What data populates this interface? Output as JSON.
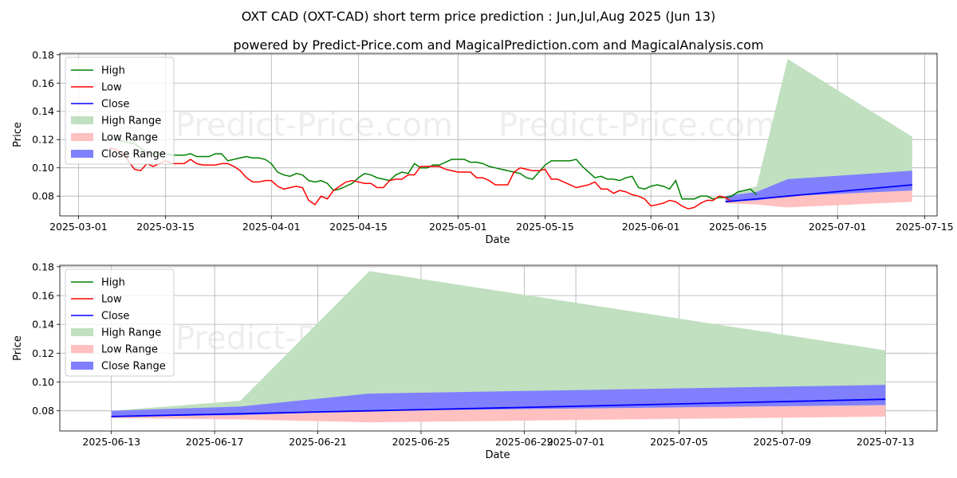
{
  "title": "OXT CAD (OXT-CAD) short term price prediction : Jun,Jul,Aug 2025 (Jun 13)",
  "subtitle": "powered by Predict-Price.com and MagicalPrediction.com and MagicalAnalysis.com",
  "watermark": "Predict-Price.com",
  "colors": {
    "high": "#008000",
    "low": "#ff0000",
    "close": "#0000ff",
    "high_range": "#c0e0c0",
    "low_range": "#ffc0c0",
    "close_range": "#8080ff",
    "grid": "#b0b0b0"
  },
  "chart_data": [
    {
      "type": "line",
      "name": "history-and-forecast",
      "xlabel": "Date",
      "ylabel": "Price",
      "xlim": [
        "2025-02-26",
        "2025-07-17"
      ],
      "ylim": [
        0.066,
        0.181
      ],
      "grid": true,
      "legend_position": "upper-left",
      "legend": [
        "High",
        "Low",
        "Close",
        "High Range",
        "Low Range",
        "Close Range"
      ],
      "xticks": [
        "2025-03-01",
        "2025-03-15",
        "2025-04-01",
        "2025-04-15",
        "2025-05-01",
        "2025-05-15",
        "2025-06-01",
        "2025-06-15",
        "2025-07-01",
        "2025-07-15"
      ],
      "yticks": [
        0.08,
        0.1,
        0.12,
        0.14,
        0.16,
        0.18
      ],
      "history_start": "2025-03-06",
      "history_high": [
        0.121,
        0.12,
        0.119,
        0.118,
        0.117,
        0.114,
        0.111,
        0.11,
        0.11,
        0.11,
        0.109,
        0.109,
        0.109,
        0.11,
        0.108,
        0.108,
        0.108,
        0.11,
        0.11,
        0.105,
        0.106,
        0.107,
        0.108,
        0.107,
        0.107,
        0.106,
        0.103,
        0.097,
        0.095,
        0.094,
        0.096,
        0.095,
        0.091,
        0.09,
        0.091,
        0.089,
        0.084,
        0.085,
        0.087,
        0.089,
        0.093,
        0.096,
        0.095,
        0.093,
        0.092,
        0.091,
        0.095,
        0.097,
        0.096,
        0.103,
        0.1,
        0.1,
        0.102,
        0.102,
        0.104,
        0.106,
        0.106,
        0.106,
        0.104,
        0.104,
        0.103,
        0.101,
        0.1,
        0.099,
        0.098,
        0.097,
        0.096,
        0.093,
        0.092,
        0.097,
        0.102,
        0.105,
        0.105,
        0.105,
        0.105,
        0.106,
        0.101,
        0.097,
        0.093,
        0.094,
        0.092,
        0.092,
        0.091,
        0.093,
        0.094,
        0.086,
        0.085,
        0.087,
        0.088,
        0.087,
        0.085,
        0.091,
        0.078,
        0.078,
        0.078,
        0.08,
        0.08,
        0.078,
        0.079,
        0.079,
        0.08,
        0.083,
        0.084,
        0.085,
        0.081
      ],
      "history_low": [
        0.114,
        0.113,
        0.111,
        0.105,
        0.099,
        0.098,
        0.103,
        0.101,
        0.103,
        0.105,
        0.103,
        0.103,
        0.103,
        0.106,
        0.103,
        0.102,
        0.102,
        0.102,
        0.103,
        0.103,
        0.101,
        0.098,
        0.093,
        0.09,
        0.09,
        0.091,
        0.091,
        0.087,
        0.085,
        0.086,
        0.087,
        0.086,
        0.077,
        0.074,
        0.08,
        0.078,
        0.084,
        0.087,
        0.09,
        0.091,
        0.09,
        0.089,
        0.089,
        0.086,
        0.086,
        0.091,
        0.092,
        0.092,
        0.095,
        0.095,
        0.101,
        0.101,
        0.101,
        0.101,
        0.099,
        0.098,
        0.097,
        0.097,
        0.097,
        0.093,
        0.093,
        0.091,
        0.088,
        0.088,
        0.088,
        0.097,
        0.1,
        0.099,
        0.098,
        0.098,
        0.099,
        0.092,
        0.092,
        0.09,
        0.088,
        0.086,
        0.087,
        0.088,
        0.09,
        0.085,
        0.085,
        0.082,
        0.084,
        0.083,
        0.081,
        0.08,
        0.078,
        0.073,
        0.074,
        0.075,
        0.077,
        0.076,
        0.073,
        0.071,
        0.072,
        0.075,
        0.077,
        0.077,
        0.08,
        0.079,
        0.076
      ],
      "forecast_x": [
        "2025-06-13",
        "2025-06-18",
        "2025-06-23",
        "2025-07-13"
      ],
      "high_range_upper": [
        0.08,
        0.087,
        0.177,
        0.122
      ],
      "low_range_lower": [
        0.075,
        0.074,
        0.072,
        0.076
      ],
      "close_range_upper": [
        0.08,
        0.083,
        0.092,
        0.098
      ],
      "close_range_lower": [
        0.076,
        0.077,
        0.08,
        0.084
      ],
      "close_line": [
        0.076,
        0.078,
        0.08,
        0.088
      ]
    },
    {
      "type": "line",
      "name": "forecast-zoom",
      "xlabel": "Date",
      "ylabel": "Price",
      "xlim": [
        "2025-06-11",
        "2025-07-15"
      ],
      "ylim": [
        0.066,
        0.181
      ],
      "grid": true,
      "legend_position": "upper-left",
      "legend": [
        "High",
        "Low",
        "Close",
        "High Range",
        "Low Range",
        "Close Range"
      ],
      "xticks": [
        "2025-06-13",
        "2025-06-17",
        "2025-06-21",
        "2025-06-25",
        "2025-06-29",
        "2025-07-01",
        "2025-07-05",
        "2025-07-09",
        "2025-07-13"
      ],
      "yticks": [
        0.08,
        0.1,
        0.12,
        0.14,
        0.16,
        0.18
      ],
      "forecast_x": [
        "2025-06-13",
        "2025-06-18",
        "2025-06-23",
        "2025-07-13"
      ],
      "high_range_upper": [
        0.08,
        0.087,
        0.177,
        0.122
      ],
      "low_range_lower": [
        0.075,
        0.074,
        0.072,
        0.076
      ],
      "close_range_upper": [
        0.08,
        0.083,
        0.092,
        0.098
      ],
      "close_range_lower": [
        0.076,
        0.077,
        0.08,
        0.084
      ],
      "close_line": [
        0.076,
        0.078,
        0.08,
        0.088
      ]
    }
  ]
}
